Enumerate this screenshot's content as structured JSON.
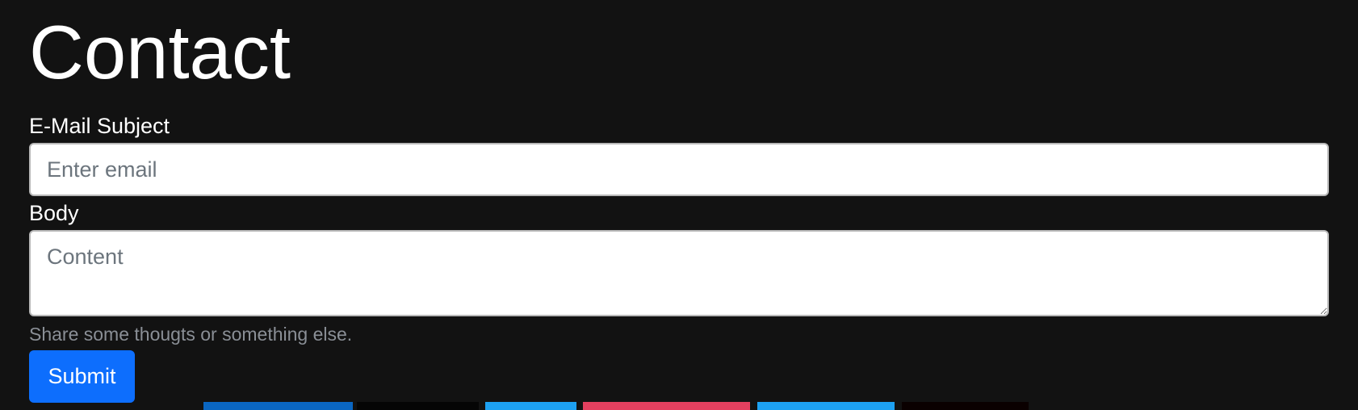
{
  "page": {
    "title": "Contact",
    "background": "#121212"
  },
  "form": {
    "subject_label": "E-Mail Subject",
    "subject_placeholder": "Enter email",
    "subject_value": "",
    "body_label": "Body",
    "body_placeholder": "Content",
    "body_value": "",
    "help_text": "Share some thougts or something else.",
    "submit_label": "Submit",
    "submit_color": "#0d6efd"
  },
  "footer_strips": [
    {
      "color": "#0a66c2"
    },
    {
      "color": "#050505"
    },
    {
      "color": "#1da1f2"
    },
    {
      "color": "#e4405f"
    },
    {
      "color": "#1da1f2"
    },
    {
      "color": "#0a0000"
    }
  ]
}
